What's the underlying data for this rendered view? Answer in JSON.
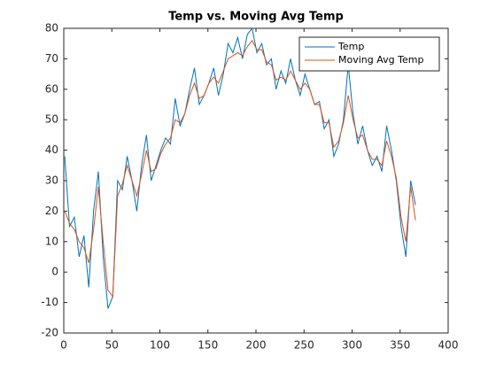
{
  "chart_data": {
    "type": "line",
    "title": "Temp vs. Moving Avg Temp",
    "x": [
      1,
      6,
      11,
      16,
      21,
      26,
      31,
      36,
      41,
      46,
      51,
      56,
      61,
      66,
      71,
      76,
      81,
      86,
      91,
      96,
      101,
      106,
      111,
      116,
      121,
      126,
      131,
      136,
      141,
      146,
      151,
      156,
      161,
      166,
      171,
      176,
      181,
      186,
      191,
      196,
      201,
      206,
      211,
      216,
      221,
      226,
      231,
      236,
      241,
      246,
      251,
      256,
      261,
      266,
      271,
      276,
      281,
      286,
      291,
      296,
      301,
      306,
      311,
      316,
      321,
      326,
      331,
      336,
      341,
      346,
      351,
      356,
      361,
      366
    ],
    "series": [
      {
        "name": "Temp",
        "color": "#0072BD",
        "values": [
          38,
          15,
          18,
          5,
          12,
          -5,
          20,
          33,
          5,
          -12,
          -8,
          30,
          27,
          38,
          30,
          20,
          35,
          45,
          30,
          35,
          40,
          44,
          42,
          57,
          48,
          52,
          60,
          67,
          55,
          58,
          62,
          67,
          58,
          65,
          75,
          72,
          77,
          70,
          78,
          80,
          72,
          75,
          68,
          70,
          60,
          66,
          62,
          70,
          63,
          58,
          65,
          60,
          55,
          56,
          47,
          50,
          38,
          42,
          50,
          68,
          52,
          42,
          48,
          40,
          35,
          38,
          33,
          48,
          40,
          30,
          15,
          5,
          30,
          22
        ]
      },
      {
        "name": "Moving Avg Temp",
        "color": "#D95319",
        "values": [
          20,
          16,
          14,
          10,
          8,
          3,
          14,
          28,
          10,
          -6,
          -8,
          25,
          29,
          35,
          30,
          25,
          32,
          40,
          33,
          34,
          39,
          42,
          44,
          50,
          49,
          52,
          58,
          62,
          57,
          58,
          62,
          64,
          62,
          66,
          70,
          71,
          72,
          71,
          74,
          76,
          73,
          73,
          69,
          68,
          63,
          64,
          63,
          66,
          63,
          60,
          62,
          60,
          55,
          55,
          49,
          49,
          41,
          43,
          49,
          58,
          50,
          44,
          45,
          40,
          37,
          37,
          35,
          43,
          38,
          31,
          18,
          10,
          28,
          17
        ]
      }
    ],
    "xlim": [
      0,
      400
    ],
    "xticks": [
      0,
      50,
      100,
      150,
      200,
      250,
      300,
      350,
      400
    ],
    "ylim": [
      -20,
      80
    ],
    "yticks": [
      -20,
      -10,
      0,
      10,
      20,
      30,
      40,
      50,
      60,
      70,
      80
    ],
    "legend": "northeast"
  }
}
